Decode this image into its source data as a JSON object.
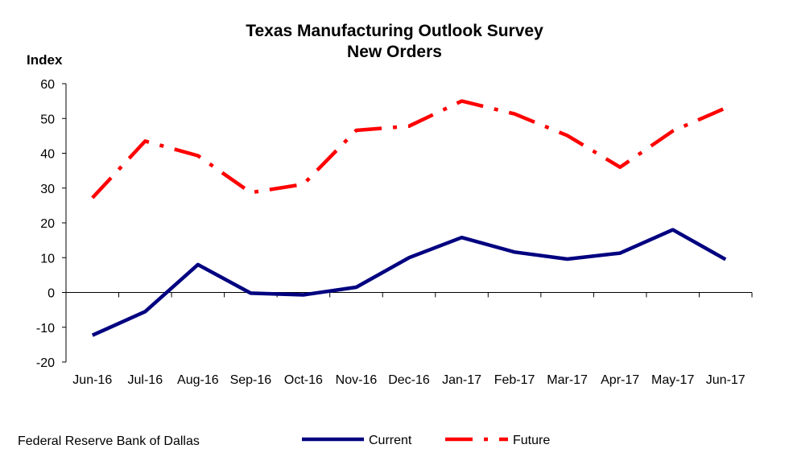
{
  "chart_data": {
    "type": "line",
    "title": "Texas Manufacturing Outlook Survey",
    "subtitle": "New Orders",
    "ylabel": "Index",
    "xlabel": "",
    "categories": [
      "Jun-16",
      "Jul-16",
      "Aug-16",
      "Sep-16",
      "Oct-16",
      "Nov-16",
      "Dec-16",
      "Jan-17",
      "Feb-17",
      "Mar-17",
      "Apr-17",
      "May-17",
      "Jun-17"
    ],
    "ylim": [
      -20,
      60
    ],
    "yticks": [
      -20,
      -10,
      0,
      10,
      20,
      30,
      40,
      50,
      60
    ],
    "grid": false,
    "legend_position": "bottom-center",
    "series": [
      {
        "name": "Current",
        "color": "#000080",
        "style": "solid",
        "values": [
          -12.3,
          -5.5,
          8.0,
          -0.2,
          -0.7,
          1.5,
          10.0,
          15.8,
          11.6,
          9.6,
          11.3,
          18.0,
          9.5
        ]
      },
      {
        "name": "Future",
        "color": "#ff0000",
        "style": "dash-dot",
        "values": [
          27.2,
          43.5,
          39.3,
          28.7,
          31.1,
          46.6,
          47.8,
          55.0,
          51.3,
          45.1,
          36.0,
          46.4,
          53.0
        ]
      }
    ]
  },
  "footer": {
    "source": "Federal Reserve Bank of Dallas"
  }
}
